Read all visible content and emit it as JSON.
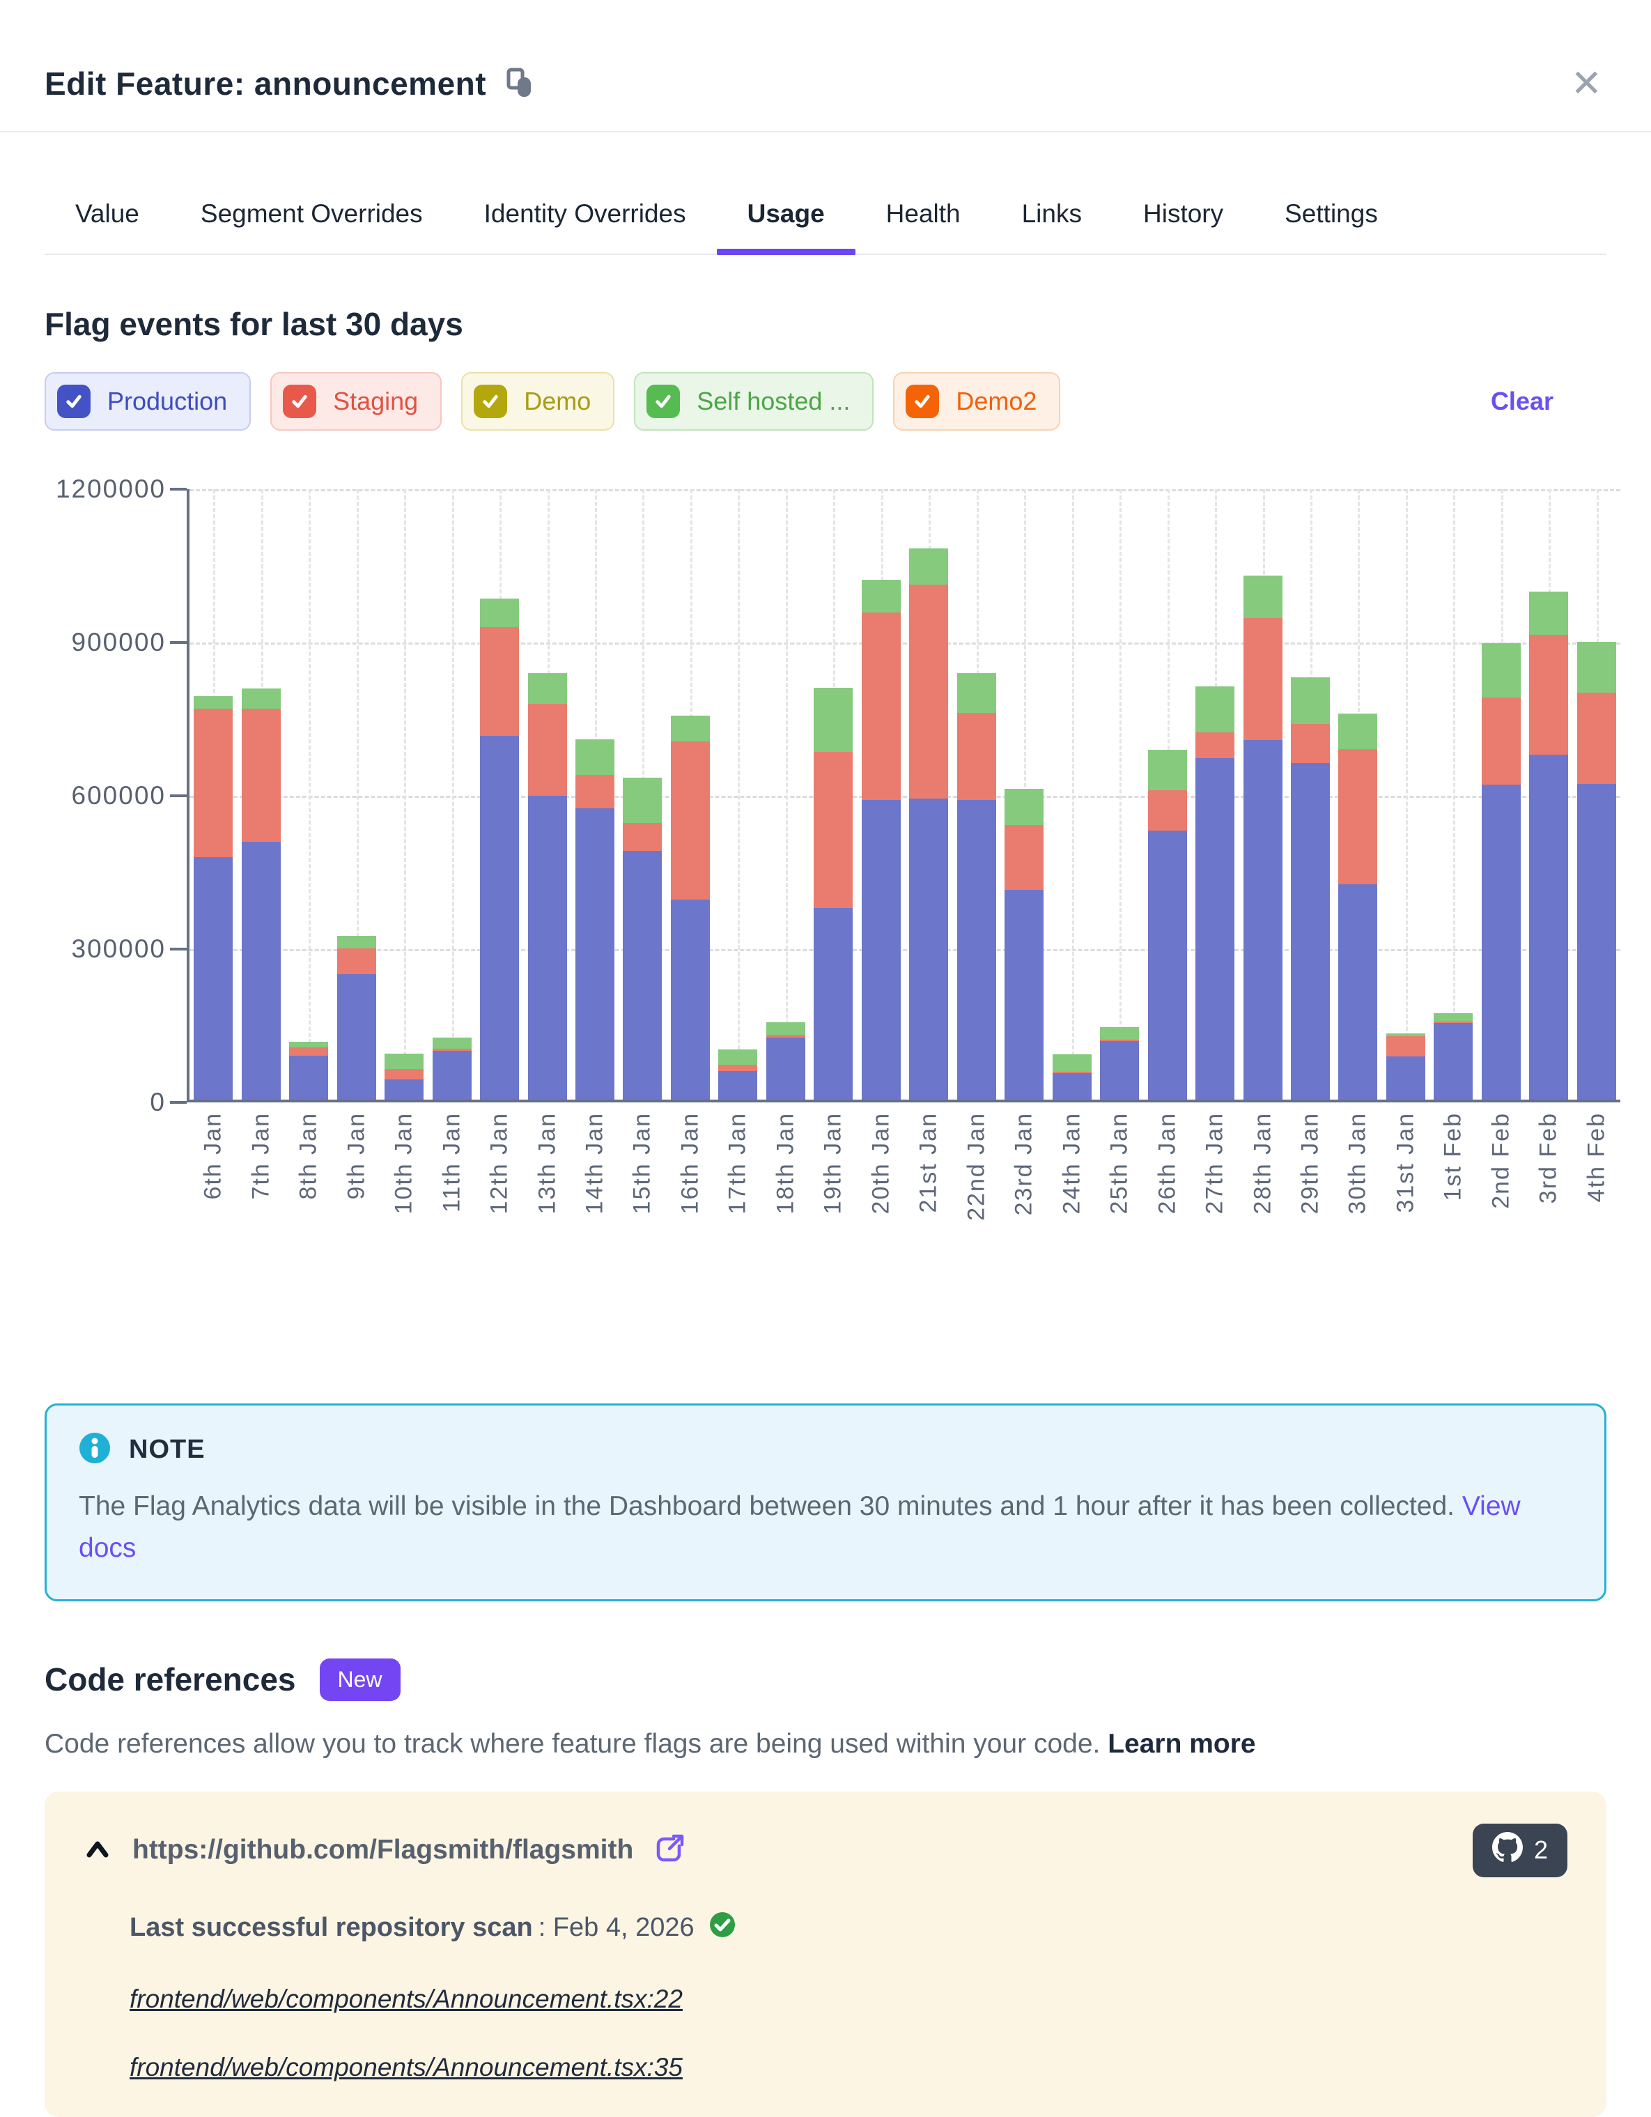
{
  "header": {
    "title": "Edit Feature: announcement",
    "close": "✕"
  },
  "tabs": [
    {
      "label": "Value",
      "active": false
    },
    {
      "label": "Segment Overrides",
      "active": false
    },
    {
      "label": "Identity Overrides",
      "active": false
    },
    {
      "label": "Usage",
      "active": true
    },
    {
      "label": "Health",
      "active": false
    },
    {
      "label": "Links",
      "active": false
    },
    {
      "label": "History",
      "active": false
    },
    {
      "label": "Settings",
      "active": false
    }
  ],
  "usage": {
    "heading": "Flag events for last 30 days",
    "clear_label": "Clear",
    "filters": [
      {
        "label": "Production",
        "checked": true,
        "bg": "#EAEDFB",
        "border": "#C6CCF0",
        "box": "#4353C5",
        "text": "#3D4DBE"
      },
      {
        "label": "Staging",
        "checked": true,
        "bg": "#FDEAE7",
        "border": "#F6C6BE",
        "box": "#E8594B",
        "text": "#E25140"
      },
      {
        "label": "Demo",
        "checked": true,
        "bg": "#FAF7E4",
        "border": "#EBE1A9",
        "box": "#B4A70D",
        "text": "#A89C12"
      },
      {
        "label": "Self hosted ...",
        "checked": true,
        "bg": "#EAF6E8",
        "border": "#C0E4BA",
        "box": "#56BB50",
        "text": "#4CA546"
      },
      {
        "label": "Demo2",
        "checked": true,
        "bg": "#FEF0E4",
        "border": "#F9D2B0",
        "box": "#F56307",
        "text": "#F2600A"
      }
    ]
  },
  "chart_data": {
    "type": "bar",
    "stacked": true,
    "title": "Flag events for last 30 days",
    "xlabel": "",
    "ylabel": "",
    "ylim": [
      0,
      1200000
    ],
    "yticks": [
      0,
      300000,
      600000,
      900000,
      1200000
    ],
    "grid": "dashed",
    "legend_position": "none",
    "categories": [
      "6th Jan",
      "7th Jan",
      "8th Jan",
      "9th Jan",
      "10th Jan",
      "11th Jan",
      "12th Jan",
      "13th Jan",
      "14th Jan",
      "15th Jan",
      "16th Jan",
      "17th Jan",
      "18th Jan",
      "19th Jan",
      "20th Jan",
      "21st Jan",
      "22nd Jan",
      "23rd Jan",
      "24th Jan",
      "25th Jan",
      "26th Jan",
      "27th Jan",
      "28th Jan",
      "29th Jan",
      "30th Jan",
      "31st Jan",
      "1st Feb",
      "2nd Feb",
      "3rd Feb",
      "4th Feb"
    ],
    "series": [
      {
        "name": "Production",
        "color": "#6C76CB",
        "values": [
          475000,
          505000,
          86000,
          245000,
          40000,
          96000,
          712000,
          595000,
          570000,
          487000,
          391000,
          56000,
          121000,
          375000,
          587000,
          589000,
          587000,
          410000,
          52000,
          114000,
          527000,
          668000,
          704000,
          658000,
          421000,
          85000,
          150000,
          616000,
          675000,
          618000
        ]
      },
      {
        "name": "Staging",
        "color": "#E97C6F",
        "values": [
          290000,
          260000,
          17000,
          50000,
          20000,
          4000,
          213000,
          180000,
          65000,
          55000,
          310000,
          12000,
          5000,
          305000,
          367000,
          419000,
          171000,
          127000,
          3000,
          3000,
          79000,
          50000,
          239000,
          77000,
          264000,
          40000,
          3000,
          170000,
          235000,
          178000
        ]
      },
      {
        "name": "Self hosted",
        "color": "#85CA7D",
        "values": [
          25000,
          40000,
          11000,
          25000,
          30000,
          22000,
          56000,
          60000,
          70000,
          88000,
          50000,
          30000,
          25000,
          125000,
          64000,
          71000,
          78000,
          71000,
          34000,
          25000,
          79000,
          90000,
          83000,
          91000,
          69000,
          5000,
          17000,
          107000,
          85000,
          99000
        ]
      }
    ]
  },
  "note": {
    "title": "NOTE",
    "text": "The Flag Analytics data will be visible in the Dashboard between 30 minutes and 1 hour after it has been collected. ",
    "link_label": "View docs"
  },
  "code_references": {
    "heading": "Code references",
    "badge": "New",
    "description": "Code references allow you to track where feature flags are being used within your code. ",
    "learn_more_label": "Learn more",
    "repo": {
      "url": "https://github.com/Flagsmith/flagsmith",
      "count": "2",
      "last_scan_label": "Last successful repository scan",
      "last_scan_value": ": Feb 4, 2026",
      "files": [
        "frontend/web/components/Announcement.tsx:22",
        "frontend/web/components/Announcement.tsx:35"
      ]
    }
  }
}
